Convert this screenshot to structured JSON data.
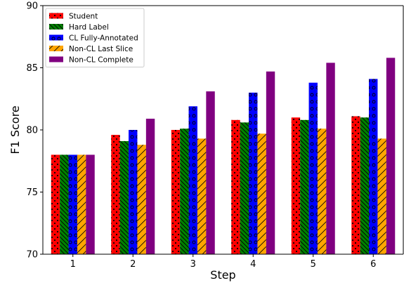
{
  "chart_data": {
    "type": "bar",
    "xlabel": "Step",
    "ylabel": "F1 Score",
    "categories": [
      "1",
      "2",
      "3",
      "4",
      "5",
      "6"
    ],
    "ylim": [
      70,
      90
    ],
    "yticks": [
      70,
      75,
      80,
      85,
      90
    ],
    "grid": false,
    "legend_position": "top-left",
    "series": [
      {
        "name": "Student",
        "color": "#ff0000",
        "hatch": "dots",
        "values": [
          78.0,
          79.6,
          80.0,
          80.8,
          81.0,
          81.1
        ]
      },
      {
        "name": "Hard Label",
        "color": "#008000",
        "hatch": "backslash",
        "values": [
          78.0,
          79.1,
          80.1,
          80.6,
          80.8,
          81.0
        ]
      },
      {
        "name": "CL Fully-Annotated",
        "color": "#0000ff",
        "hatch": "circles",
        "values": [
          78.0,
          80.0,
          81.9,
          83.0,
          83.8,
          84.1
        ]
      },
      {
        "name": "Non-CL Last Slice",
        "color": "#ffa500",
        "hatch": "slash",
        "values": [
          78.0,
          78.8,
          79.3,
          79.7,
          80.1,
          79.3
        ]
      },
      {
        "name": "Non-CL Complete",
        "color": "#800080",
        "hatch": "none",
        "values": [
          78.0,
          80.9,
          83.1,
          84.7,
          85.4,
          85.8
        ]
      }
    ]
  }
}
